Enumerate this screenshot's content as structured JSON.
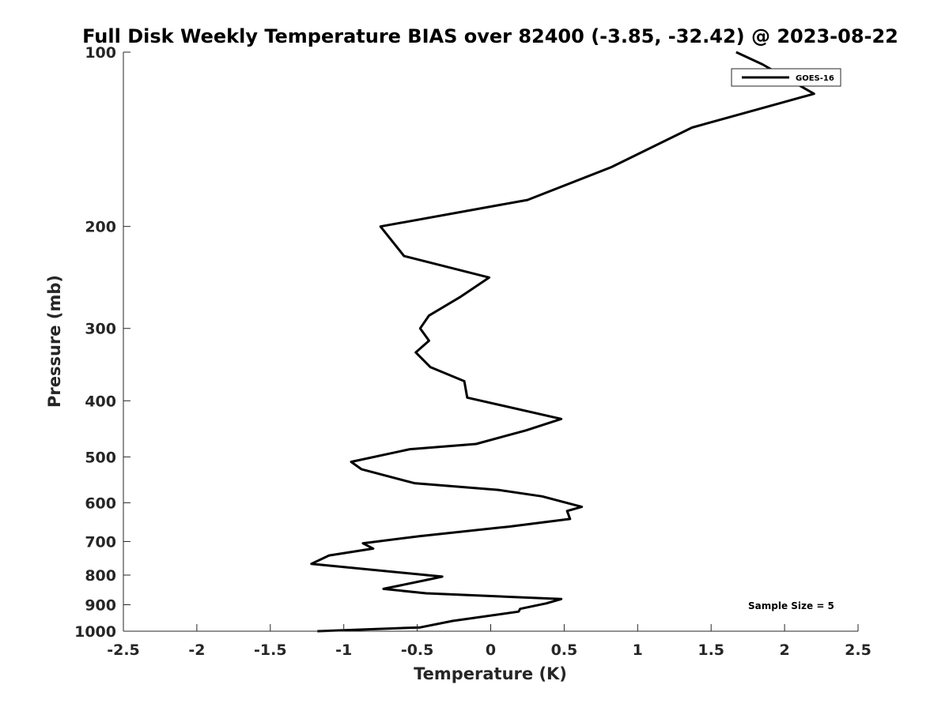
{
  "chart_data": {
    "type": "line",
    "title": "Full Disk Weekly Temperature BIAS over 82400 (-3.85, -32.42) @ 2023-08-22",
    "xlabel": "Temperature (K)",
    "ylabel": "Pressure (mb)",
    "xlim": [
      -2.5,
      2.5
    ],
    "ylim": [
      100,
      1000
    ],
    "y_scale": "log",
    "y_reversed": true,
    "x_ticks": [
      -2.5,
      -2,
      -1.5,
      -1,
      -0.5,
      0,
      0.5,
      1,
      1.5,
      2,
      2.5
    ],
    "x_tick_labels": [
      "-2.5",
      "-2",
      "-1.5",
      "-1",
      "-0.5",
      "0",
      "0.5",
      "1",
      "1.5",
      "2",
      "2.5"
    ],
    "y_ticks": [
      100,
      200,
      300,
      400,
      500,
      600,
      700,
      800,
      900,
      1000
    ],
    "y_tick_labels": [
      "100",
      "200",
      "300",
      "400",
      "500",
      "600",
      "700",
      "800",
      "900",
      "1000"
    ],
    "grid": false,
    "legend_position": "top-right",
    "annotation": "Sample Size = 5",
    "series": [
      {
        "name": "GOES-16",
        "color": "#000000",
        "x": [
          1.67,
          1.85,
          2.2,
          1.37,
          0.82,
          0.25,
          -0.75,
          -0.59,
          -0.01,
          -0.21,
          -0.42,
          -0.48,
          -0.42,
          -0.51,
          -0.41,
          -0.18,
          -0.16,
          0.48,
          0.24,
          -0.1,
          -0.55,
          -0.95,
          -0.88,
          -0.52,
          0.05,
          0.35,
          0.62,
          0.52,
          0.54,
          0.12,
          -0.48,
          -0.87,
          -0.8,
          -1.1,
          -1.22,
          -0.33,
          -0.43,
          -0.73,
          -0.44,
          0.48,
          0.38,
          0.2,
          0.19,
          -0.26,
          -0.48,
          -1.18
        ],
        "y": [
          100,
          105,
          118,
          135,
          158,
          180,
          200,
          225,
          245,
          265,
          285,
          300,
          315,
          330,
          350,
          370,
          395,
          430,
          450,
          475,
          485,
          510,
          525,
          555,
          570,
          585,
          610,
          620,
          640,
          660,
          685,
          705,
          720,
          740,
          765,
          805,
          815,
          845,
          860,
          880,
          895,
          915,
          925,
          960,
          985,
          1000
        ]
      }
    ]
  }
}
